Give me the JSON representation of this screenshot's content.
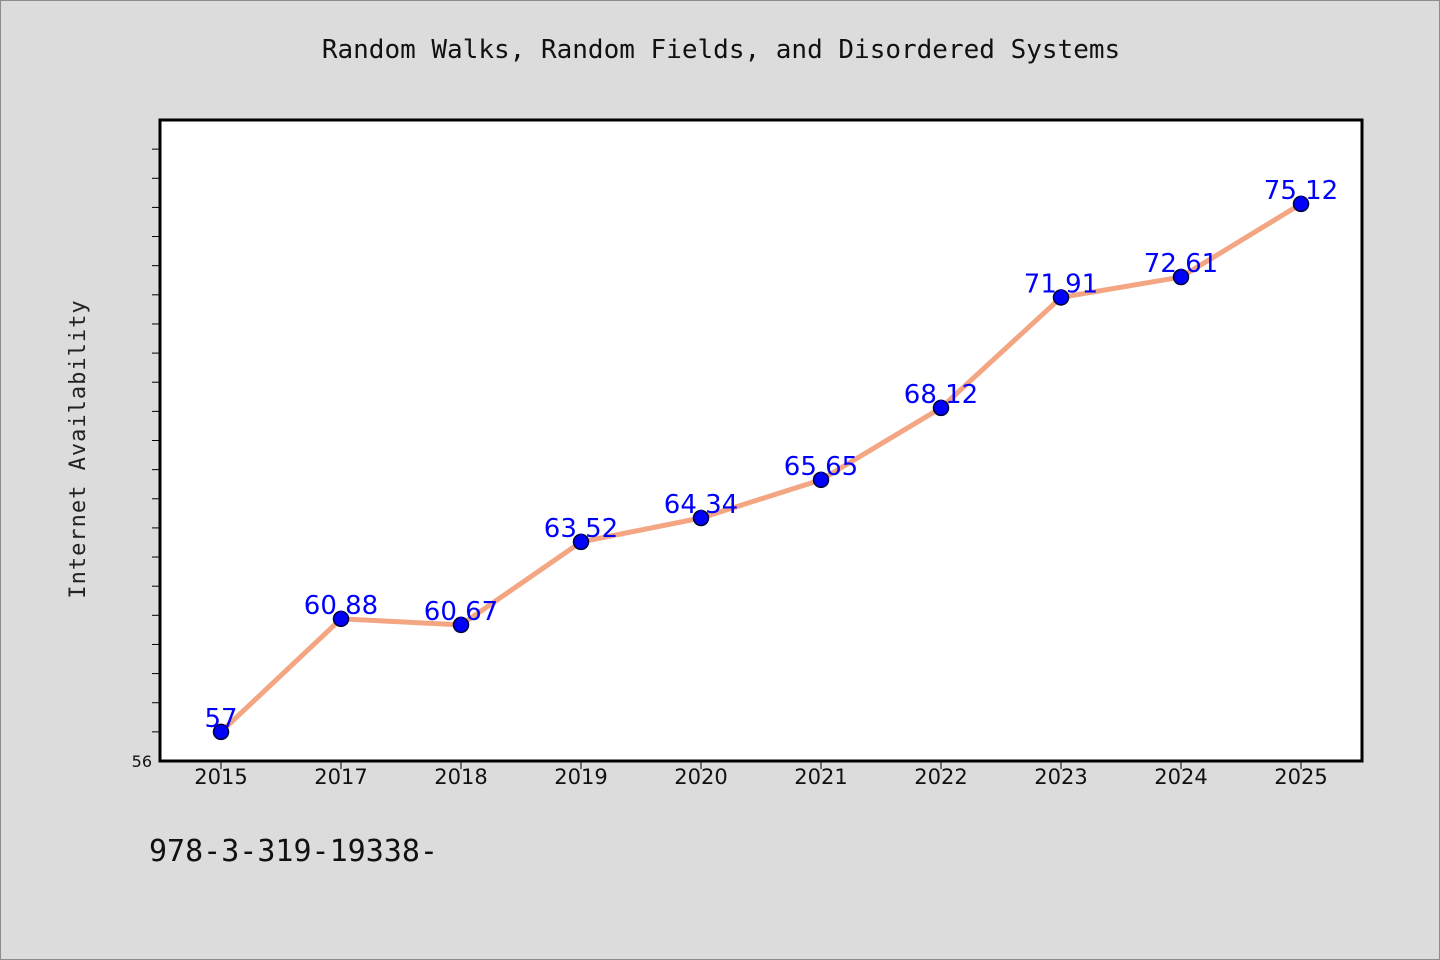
{
  "chart_data": {
    "type": "line",
    "title": "Random Walks, Random Fields, and Disordered Systems",
    "xlabel": "",
    "ylabel": "Internet Availability",
    "categories": [
      "2015",
      "2017",
      "2018",
      "2019",
      "2020",
      "2021",
      "2022",
      "2023",
      "2024",
      "2025"
    ],
    "series": [
      {
        "values": [
          57,
          60.88,
          60.67,
          63.52,
          64.34,
          65.65,
          68.12,
          71.91,
          72.61,
          75.12
        ],
        "data_labels": [
          "57",
          "60.88",
          "60.67",
          "63.52",
          "64.34",
          "65.65",
          "68.12",
          "71.91",
          "72.61",
          "75.12"
        ],
        "line_color": "#f4a582",
        "marker_color": "#0000ff"
      }
    ],
    "ylim": [
      56,
      78
    ],
    "ytick_labels": [
      "56"
    ],
    "grid": false,
    "legend": "none"
  },
  "footer": {
    "code": "978-3-319-19338-"
  }
}
